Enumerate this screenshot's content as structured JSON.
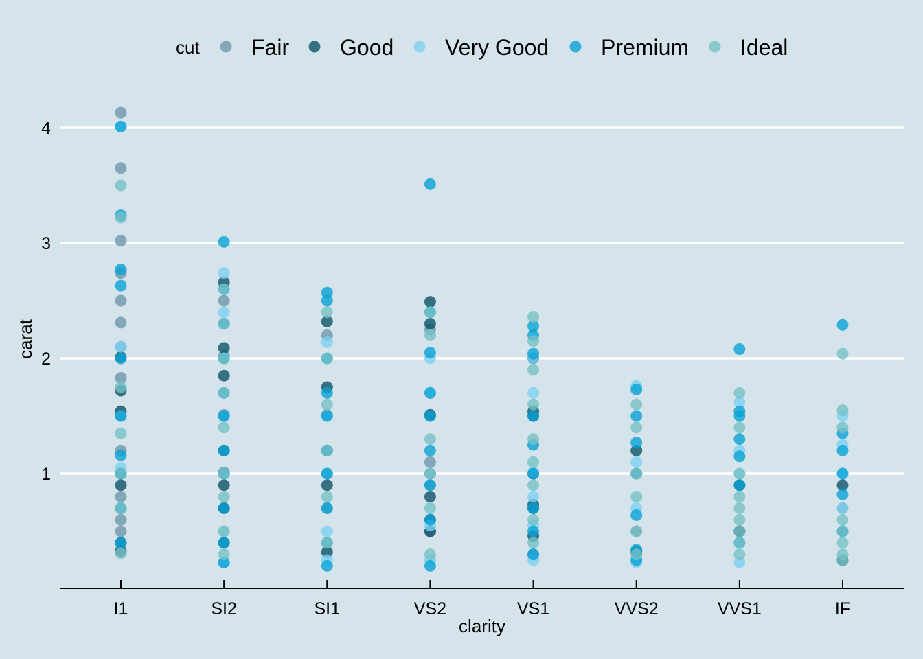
{
  "chart_data": {
    "type": "scatter",
    "title": "",
    "xlabel": "clarity",
    "ylabel": "carat",
    "categories": [
      "I1",
      "SI2",
      "SI1",
      "VS2",
      "VS1",
      "VVS2",
      "VVS1",
      "IF"
    ],
    "yticks": [
      1,
      2,
      3,
      4
    ],
    "ylim": [
      0.0,
      4.2
    ],
    "grid": "horizontal major",
    "legend": {
      "title": "cut",
      "position": "top",
      "entries": [
        "Fair",
        "Good",
        "Very Good",
        "Premium",
        "Ideal"
      ]
    },
    "colors": {
      "Fair": "#6e96ab",
      "Good": "#0d5269",
      "Very Good": "#7dd0f2",
      "Premium": "#0aa2d6",
      "Ideal": "#75c0c4"
    },
    "background": "#d5e4eb",
    "series": [
      {
        "name": "Fair",
        "points": [
          [
            "I1",
            4.13
          ],
          [
            "I1",
            3.65
          ],
          [
            "I1",
            3.02
          ],
          [
            "I1",
            2.74
          ],
          [
            "I1",
            2.5
          ],
          [
            "I1",
            2.31
          ],
          [
            "I1",
            2.1
          ],
          [
            "I1",
            1.83
          ],
          [
            "I1",
            1.5
          ],
          [
            "I1",
            1.2
          ],
          [
            "I1",
            1.0
          ],
          [
            "I1",
            0.8
          ],
          [
            "I1",
            0.6
          ],
          [
            "I1",
            0.5
          ],
          [
            "SI2",
            2.5
          ],
          [
            "SI2",
            2.3
          ],
          [
            "SI2",
            2.02
          ],
          [
            "SI2",
            1.51
          ],
          [
            "SI2",
            1.01
          ],
          [
            "SI2",
            0.7
          ],
          [
            "SI1",
            2.2
          ],
          [
            "SI1",
            1.51
          ],
          [
            "SI1",
            1.0
          ],
          [
            "SI1",
            0.7
          ],
          [
            "VS2",
            2.25
          ],
          [
            "VS2",
            1.5
          ],
          [
            "VS2",
            1.1
          ],
          [
            "VS2",
            0.9
          ],
          [
            "VS2",
            0.5
          ],
          [
            "VS1",
            1.5
          ],
          [
            "VS1",
            1.0
          ],
          [
            "VS1",
            0.3
          ],
          [
            "VVS2",
            1.0
          ],
          [
            "VVS2",
            0.5
          ],
          [
            "VVS1",
            0.9
          ],
          [
            "VVS1",
            0.5
          ],
          [
            "IF",
            0.7
          ],
          [
            "IF",
            0.5
          ]
        ]
      },
      {
        "name": "Good",
        "points": [
          [
            "I1",
            2.01
          ],
          [
            "I1",
            1.72
          ],
          [
            "I1",
            1.54
          ],
          [
            "I1",
            1.5
          ],
          [
            "I1",
            1.0
          ],
          [
            "I1",
            0.9
          ],
          [
            "I1",
            0.7
          ],
          [
            "I1",
            0.4
          ],
          [
            "I1",
            0.33
          ],
          [
            "SI2",
            2.66
          ],
          [
            "SI2",
            2.09
          ],
          [
            "SI2",
            1.85
          ],
          [
            "SI2",
            1.5
          ],
          [
            "SI2",
            1.2
          ],
          [
            "SI2",
            1.0
          ],
          [
            "SI2",
            0.9
          ],
          [
            "SI2",
            0.7
          ],
          [
            "SI2",
            0.4
          ],
          [
            "SI1",
            2.32
          ],
          [
            "SI1",
            1.75
          ],
          [
            "SI1",
            1.2
          ],
          [
            "SI1",
            0.9
          ],
          [
            "SI1",
            0.32
          ],
          [
            "VS2",
            2.49
          ],
          [
            "VS2",
            2.3
          ],
          [
            "VS2",
            1.51
          ],
          [
            "VS2",
            1.0
          ],
          [
            "VS2",
            0.8
          ],
          [
            "VS2",
            0.6
          ],
          [
            "VS2",
            0.5
          ],
          [
            "VS1",
            2.0
          ],
          [
            "VS1",
            1.54
          ],
          [
            "VS1",
            1.5
          ],
          [
            "VS1",
            1.0
          ],
          [
            "VS1",
            0.73
          ],
          [
            "VS1",
            0.7
          ],
          [
            "VS1",
            0.46
          ],
          [
            "VVS2",
            1.2
          ],
          [
            "VVS2",
            0.32
          ],
          [
            "VVS1",
            0.9
          ],
          [
            "VVS1",
            0.5
          ],
          [
            "IF",
            0.9
          ],
          [
            "IF",
            0.25
          ]
        ]
      },
      {
        "name": "Very Good",
        "points": [
          [
            "I1",
            4.01
          ],
          [
            "I1",
            2.1
          ],
          [
            "I1",
            1.5
          ],
          [
            "I1",
            1.05
          ],
          [
            "I1",
            0.7
          ],
          [
            "SI2",
            2.74
          ],
          [
            "SI2",
            2.4
          ],
          [
            "SI2",
            2.0
          ],
          [
            "SI2",
            1.5
          ],
          [
            "SI2",
            1.0
          ],
          [
            "SI2",
            0.5
          ],
          [
            "SI2",
            0.23
          ],
          [
            "SI1",
            2.14
          ],
          [
            "SI1",
            2.0
          ],
          [
            "SI1",
            1.5
          ],
          [
            "SI1",
            1.0
          ],
          [
            "SI1",
            0.5
          ],
          [
            "SI1",
            0.25
          ],
          [
            "VS2",
            2.0
          ],
          [
            "VS2",
            1.7
          ],
          [
            "VS2",
            1.0
          ],
          [
            "VS2",
            0.55
          ],
          [
            "VS2",
            0.25
          ],
          [
            "VS1",
            2.0
          ],
          [
            "VS1",
            1.7
          ],
          [
            "VS1",
            1.01
          ],
          [
            "VS1",
            0.8
          ],
          [
            "VS1",
            0.55
          ],
          [
            "VS1",
            0.25
          ],
          [
            "VVS2",
            1.76
          ],
          [
            "VVS2",
            1.1
          ],
          [
            "VVS2",
            0.7
          ],
          [
            "VVS2",
            0.23
          ],
          [
            "VVS1",
            1.62
          ],
          [
            "VVS1",
            1.2
          ],
          [
            "VVS1",
            1.0
          ],
          [
            "VVS1",
            0.23
          ],
          [
            "IF",
            1.5
          ],
          [
            "IF",
            1.25
          ],
          [
            "IF",
            1.0
          ],
          [
            "IF",
            0.7
          ]
        ]
      },
      {
        "name": "Premium",
        "points": [
          [
            "I1",
            4.01
          ],
          [
            "I1",
            3.24
          ],
          [
            "I1",
            2.77
          ],
          [
            "I1",
            2.63
          ],
          [
            "I1",
            2.0
          ],
          [
            "I1",
            1.5
          ],
          [
            "I1",
            1.16
          ],
          [
            "I1",
            1.0
          ],
          [
            "I1",
            0.7
          ],
          [
            "I1",
            0.4
          ],
          [
            "SI2",
            3.01
          ],
          [
            "SI2",
            2.6
          ],
          [
            "SI2",
            2.3
          ],
          [
            "SI2",
            2.0
          ],
          [
            "SI2",
            1.7
          ],
          [
            "SI2",
            1.5
          ],
          [
            "SI2",
            1.2
          ],
          [
            "SI2",
            1.0
          ],
          [
            "SI2",
            0.7
          ],
          [
            "SI2",
            0.4
          ],
          [
            "SI2",
            0.23
          ],
          [
            "SI1",
            2.57
          ],
          [
            "SI1",
            2.5
          ],
          [
            "SI1",
            2.0
          ],
          [
            "SI1",
            1.7
          ],
          [
            "SI1",
            1.5
          ],
          [
            "SI1",
            1.2
          ],
          [
            "SI1",
            1.0
          ],
          [
            "SI1",
            0.7
          ],
          [
            "SI1",
            0.4
          ],
          [
            "SI1",
            0.2
          ],
          [
            "VS2",
            3.51
          ],
          [
            "VS2",
            2.4
          ],
          [
            "VS2",
            2.05
          ],
          [
            "VS2",
            1.7
          ],
          [
            "VS2",
            1.5
          ],
          [
            "VS2",
            1.2
          ],
          [
            "VS2",
            0.9
          ],
          [
            "VS2",
            0.6
          ],
          [
            "VS2",
            0.2
          ],
          [
            "VS1",
            2.28
          ],
          [
            "VS1",
            2.2
          ],
          [
            "VS1",
            2.04
          ],
          [
            "VS1",
            1.5
          ],
          [
            "VS1",
            1.25
          ],
          [
            "VS1",
            1.0
          ],
          [
            "VS1",
            0.7
          ],
          [
            "VS1",
            0.5
          ],
          [
            "VS1",
            0.3
          ],
          [
            "VVS2",
            1.73
          ],
          [
            "VVS2",
            1.5
          ],
          [
            "VVS2",
            1.27
          ],
          [
            "VVS2",
            1.0
          ],
          [
            "VVS2",
            0.64
          ],
          [
            "VVS2",
            0.34
          ],
          [
            "VVS2",
            0.25
          ],
          [
            "VVS1",
            2.08
          ],
          [
            "VVS1",
            1.54
          ],
          [
            "VVS1",
            1.5
          ],
          [
            "VVS1",
            1.3
          ],
          [
            "VVS1",
            1.15
          ],
          [
            "VVS1",
            0.9
          ],
          [
            "VVS1",
            0.4
          ],
          [
            "IF",
            2.29
          ],
          [
            "IF",
            1.35
          ],
          [
            "IF",
            1.2
          ],
          [
            "IF",
            1.0
          ],
          [
            "IF",
            0.82
          ],
          [
            "IF",
            0.5
          ]
        ]
      },
      {
        "name": "Ideal",
        "points": [
          [
            "I1",
            3.5
          ],
          [
            "I1",
            3.22
          ],
          [
            "I1",
            1.75
          ],
          [
            "I1",
            1.35
          ],
          [
            "I1",
            1.0
          ],
          [
            "I1",
            0.7
          ],
          [
            "I1",
            0.31
          ],
          [
            "SI2",
            2.6
          ],
          [
            "SI2",
            2.3
          ],
          [
            "SI2",
            2.0
          ],
          [
            "SI2",
            1.7
          ],
          [
            "SI2",
            1.4
          ],
          [
            "SI2",
            1.0
          ],
          [
            "SI2",
            0.8
          ],
          [
            "SI2",
            0.5
          ],
          [
            "SI2",
            0.3
          ],
          [
            "SI1",
            2.4
          ],
          [
            "SI1",
            2.0
          ],
          [
            "SI1",
            1.6
          ],
          [
            "SI1",
            1.2
          ],
          [
            "SI1",
            0.8
          ],
          [
            "SI1",
            0.4
          ],
          [
            "VS2",
            2.4
          ],
          [
            "VS2",
            2.2
          ],
          [
            "VS2",
            1.3
          ],
          [
            "VS2",
            1.0
          ],
          [
            "VS2",
            0.7
          ],
          [
            "VS2",
            0.3
          ],
          [
            "VS1",
            2.36
          ],
          [
            "VS1",
            2.15
          ],
          [
            "VS1",
            1.9
          ],
          [
            "VS1",
            1.6
          ],
          [
            "VS1",
            1.3
          ],
          [
            "VS1",
            1.1
          ],
          [
            "VS1",
            0.9
          ],
          [
            "VS1",
            0.6
          ],
          [
            "VS1",
            0.4
          ],
          [
            "VVS2",
            1.6
          ],
          [
            "VVS2",
            1.4
          ],
          [
            "VVS2",
            1.0
          ],
          [
            "VVS2",
            0.8
          ],
          [
            "VVS2",
            0.5
          ],
          [
            "VVS2",
            0.3
          ],
          [
            "VVS1",
            1.7
          ],
          [
            "VVS1",
            1.4
          ],
          [
            "VVS1",
            1.0
          ],
          [
            "VVS1",
            0.8
          ],
          [
            "VVS1",
            0.7
          ],
          [
            "VVS1",
            0.6
          ],
          [
            "VVS1",
            0.5
          ],
          [
            "VVS1",
            0.4
          ],
          [
            "VVS1",
            0.3
          ],
          [
            "IF",
            2.04
          ],
          [
            "IF",
            1.55
          ],
          [
            "IF",
            1.4
          ],
          [
            "IF",
            0.6
          ],
          [
            "IF",
            0.5
          ],
          [
            "IF",
            0.4
          ],
          [
            "IF",
            0.3
          ],
          [
            "IF",
            0.25
          ]
        ]
      }
    ]
  }
}
